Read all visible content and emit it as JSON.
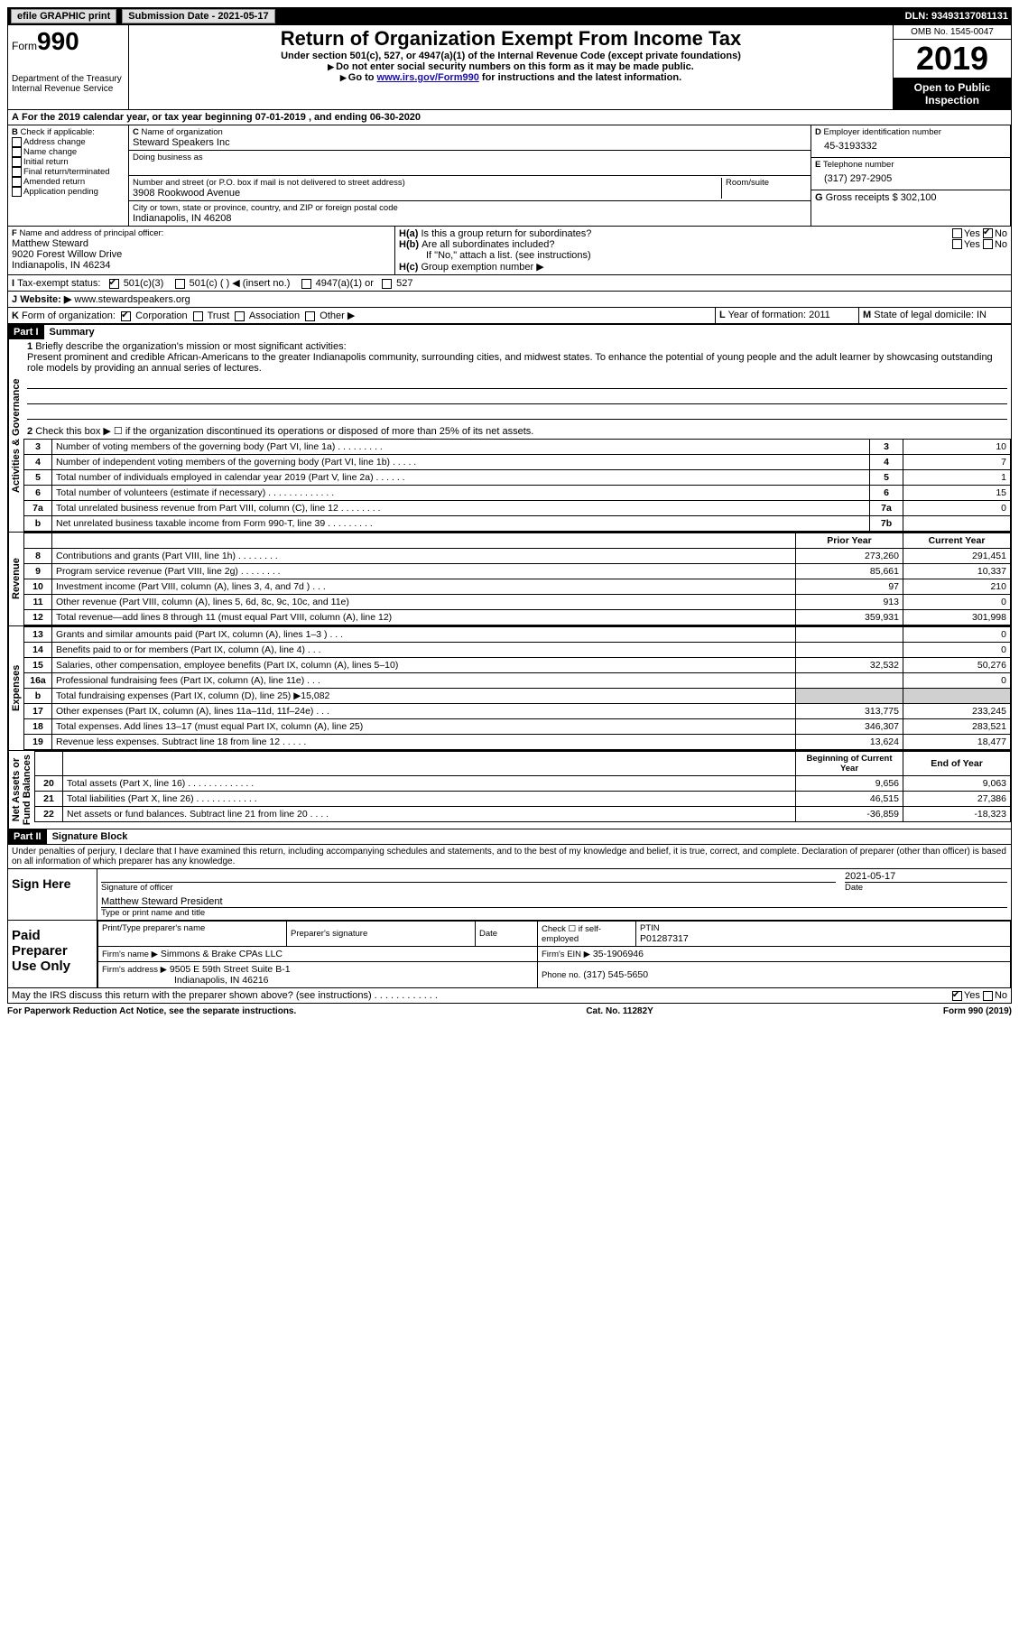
{
  "topbar": {
    "efile": "efile GRAPHIC print",
    "submission": "Submission Date - 2021-05-17",
    "dln": "DLN: 93493137081131"
  },
  "header": {
    "form_word": "Form",
    "form_num": "990",
    "dept": "Department of the Treasury\nInternal Revenue Service",
    "title": "Return of Organization Exempt From Income Tax",
    "sub": "Under section 501(c), 527, or 4947(a)(1) of the Internal Revenue Code (except private foundations)",
    "sub2a": "Do not enter social security numbers on this form as it may be made public.",
    "sub2b_pre": "Go to ",
    "sub2b_link": "www.irs.gov/Form990",
    "sub2b_post": " for instructions and the latest information.",
    "omb": "OMB No. 1545-0047",
    "year": "2019",
    "open": "Open to Public Inspection"
  },
  "periodA": "For the 2019 calendar year, or tax year beginning 07-01-2019    , and ending 06-30-2020",
  "boxB": {
    "label": "Check if applicable:",
    "opts": [
      "Address change",
      "Name change",
      "Initial return",
      "Final return/terminated",
      "Amended return",
      "Application pending"
    ]
  },
  "boxC": {
    "label": "Name of organization",
    "val": "Steward Speakers Inc",
    "dba_label": "Doing business as",
    "addr_label": "Number and street (or P.O. box if mail is not delivered to street address)",
    "addr": "3908 Rookwood Avenue",
    "room_label": "Room/suite",
    "city_label": "City or town, state or province, country, and ZIP or foreign postal code",
    "city": "Indianapolis, IN  46208"
  },
  "boxD": {
    "label": "Employer identification number",
    "val": "45-3193332"
  },
  "boxE": {
    "label": "Telephone number",
    "val": "(317) 297-2905"
  },
  "boxG": {
    "label": "Gross receipts $",
    "val": "302,100"
  },
  "boxF": {
    "label": "Name and address of principal officer:",
    "name": "Matthew Steward",
    "addr1": "9020 Forest Willow Drive",
    "addr2": "Indianapolis, IN  46234"
  },
  "boxH": {
    "a": "Is this a group return for subordinates?",
    "b": "Are all subordinates included?",
    "note": "If \"No,\" attach a list. (see instructions)",
    "c": "Group exemption number ▶"
  },
  "taxExempt": {
    "label": "Tax-exempt status:",
    "o1": "501(c)(3)",
    "o2": "501(c) (  ) ◀ (insert no.)",
    "o3": "4947(a)(1) or",
    "o4": "527"
  },
  "website": {
    "label": "Website: ▶",
    "val": "www.stewardspeakers.org"
  },
  "boxK": {
    "label": "Form of organization:",
    "opts": [
      "Corporation",
      "Trust",
      "Association",
      "Other ▶"
    ]
  },
  "boxL": {
    "label": "Year of formation:",
    "val": "2011"
  },
  "boxM": {
    "label": "State of legal domicile:",
    "val": "IN"
  },
  "part1": {
    "header": "Part I",
    "title": "Summary",
    "line1_label": "Briefly describe the organization's mission or most significant activities:",
    "line1_text": "Present prominent and credible African-Americans to the greater Indianapolis community, surrounding cities, and midwest states. To enhance the potential of young people and the adult learner by showcasing outstanding role models by providing an annual series of lectures.",
    "line2": "Check this box ▶ ☐  if the organization discontinued its operations or disposed of more than 25% of its net assets.",
    "gov_lines": [
      {
        "n": "3",
        "desc": "Number of voting members of the governing body (Part VI, line 1a)   . . . . . . . . .",
        "box": "3",
        "val": "10"
      },
      {
        "n": "4",
        "desc": "Number of independent voting members of the governing body (Part VI, line 1b)   . . . . .",
        "box": "4",
        "val": "7"
      },
      {
        "n": "5",
        "desc": "Total number of individuals employed in calendar year 2019 (Part V, line 2a)   . . . . . .",
        "box": "5",
        "val": "1"
      },
      {
        "n": "6",
        "desc": "Total number of volunteers (estimate if necessary)   . . . . . . . . . . . . .",
        "box": "6",
        "val": "15"
      },
      {
        "n": "7a",
        "desc": "Total unrelated business revenue from Part VIII, column (C), line 12   . . . . . . . .",
        "box": "7a",
        "val": "0"
      },
      {
        "n": "b",
        "desc": "Net unrelated business taxable income from Form 990-T, line 39   . . . . . . . . .",
        "box": "7b",
        "val": ""
      }
    ],
    "col_headers": {
      "prior": "Prior Year",
      "current": "Current Year"
    },
    "rev_lines": [
      {
        "n": "8",
        "desc": "Contributions and grants (Part VIII, line 1h)   . . . . . . . .",
        "p": "273,260",
        "c": "291,451"
      },
      {
        "n": "9",
        "desc": "Program service revenue (Part VIII, line 2g)   . . . . . . . .",
        "p": "85,661",
        "c": "10,337"
      },
      {
        "n": "10",
        "desc": "Investment income (Part VIII, column (A), lines 3, 4, and 7d )   . . .",
        "p": "97",
        "c": "210"
      },
      {
        "n": "11",
        "desc": "Other revenue (Part VIII, column (A), lines 5, 6d, 8c, 9c, 10c, and 11e)",
        "p": "913",
        "c": "0"
      },
      {
        "n": "12",
        "desc": "Total revenue—add lines 8 through 11 (must equal Part VIII, column (A), line 12)",
        "p": "359,931",
        "c": "301,998"
      }
    ],
    "exp_lines": [
      {
        "n": "13",
        "desc": "Grants and similar amounts paid (Part IX, column (A), lines 1–3 ) . . .",
        "p": "",
        "c": "0"
      },
      {
        "n": "14",
        "desc": "Benefits paid to or for members (Part IX, column (A), line 4)   . . .",
        "p": "",
        "c": "0"
      },
      {
        "n": "15",
        "desc": "Salaries, other compensation, employee benefits (Part IX, column (A), lines 5–10)",
        "p": "32,532",
        "c": "50,276"
      },
      {
        "n": "16a",
        "desc": "Professional fundraising fees (Part IX, column (A), line 11e)   . . .",
        "p": "",
        "c": "0"
      },
      {
        "n": "b",
        "desc": "Total fundraising expenses (Part IX, column (D), line 25) ▶15,082",
        "p": "GRAY",
        "c": "GRAY"
      },
      {
        "n": "17",
        "desc": "Other expenses (Part IX, column (A), lines 11a–11d, 11f–24e)   . . .",
        "p": "313,775",
        "c": "233,245"
      },
      {
        "n": "18",
        "desc": "Total expenses. Add lines 13–17 (must equal Part IX, column (A), line 25)",
        "p": "346,307",
        "c": "283,521"
      },
      {
        "n": "19",
        "desc": "Revenue less expenses. Subtract line 18 from line 12   . . . . .",
        "p": "13,624",
        "c": "18,477"
      }
    ],
    "na_headers": {
      "begin": "Beginning of Current Year",
      "end": "End of Year"
    },
    "na_lines": [
      {
        "n": "20",
        "desc": "Total assets (Part X, line 16)   . . . . . . . . . . . . .",
        "p": "9,656",
        "c": "9,063"
      },
      {
        "n": "21",
        "desc": "Total liabilities (Part X, line 26)   . . . . . . . . . . . .",
        "p": "46,515",
        "c": "27,386"
      },
      {
        "n": "22",
        "desc": "Net assets or fund balances. Subtract line 21 from line 20   . . . .",
        "p": "-36,859",
        "c": "-18,323"
      }
    ],
    "vlabels": {
      "gov": "Activities & Governance",
      "rev": "Revenue",
      "exp": "Expenses",
      "na": "Net Assets or\nFund Balances"
    }
  },
  "part2": {
    "header": "Part II",
    "title": "Signature Block",
    "declaration": "Under penalties of perjury, I declare that I have examined this return, including accompanying schedules and statements, and to the best of my knowledge and belief, it is true, correct, and complete. Declaration of preparer (other than officer) is based on all information of which preparer has any knowledge.",
    "sign_here": "Sign Here",
    "sig_officer": "Signature of officer",
    "sig_date_val": "2021-05-17",
    "sig_date": "Date",
    "sig_name": "Matthew Steward  President",
    "sig_name_label": "Type or print name and title",
    "paid": "Paid Preparer Use Only",
    "prep_name_label": "Print/Type preparer's name",
    "prep_sig_label": "Preparer's signature",
    "prep_date": "Date",
    "prep_check": "Check ☐ if self-employed",
    "ptin_label": "PTIN",
    "ptin": "P01287317",
    "firm_name_label": "Firm's name    ▶",
    "firm_name": "Simmons & Brake CPAs LLC",
    "firm_ein_label": "Firm's EIN ▶",
    "firm_ein": "35-1906946",
    "firm_addr_label": "Firm's address ▶",
    "firm_addr1": "9505 E 59th Street Suite B-1",
    "firm_addr2": "Indianapolis, IN  46216",
    "phone_label": "Phone no.",
    "phone": "(317) 545-5650",
    "discuss": "May the IRS discuss this return with the preparer shown above? (see instructions)   . . . . . . . . . . . ."
  },
  "footer": {
    "left": "For Paperwork Reduction Act Notice, see the separate instructions.",
    "mid": "Cat. No. 11282Y",
    "right": "Form 990 (2019)"
  },
  "yesno": {
    "yes": "Yes",
    "no": "No"
  }
}
